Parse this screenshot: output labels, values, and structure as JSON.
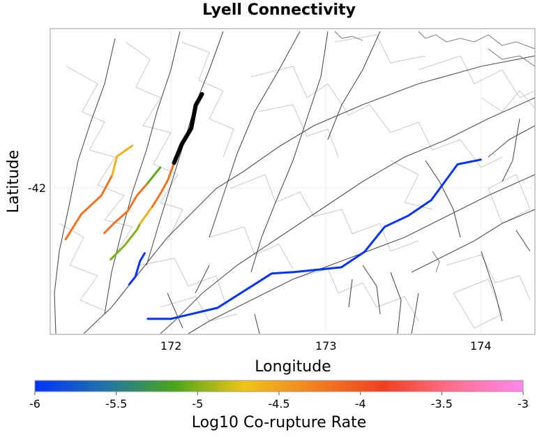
{
  "chart_data": {
    "type": "map",
    "title": "Lyell Connectivity",
    "xlabel": "Longitude",
    "ylabel": "Latitude",
    "xlim": [
      171.22,
      174.35
    ],
    "ylim": [
      -42.94,
      -40.98
    ],
    "x_ticks": [
      {
        "value": 172,
        "label": "172"
      },
      {
        "value": 173,
        "label": "173"
      },
      {
        "value": 174,
        "label": "174"
      }
    ],
    "y_ticks": [
      {
        "value": -42,
        "label": "-42"
      }
    ],
    "grid": true,
    "colorbar": {
      "label": "Log10 Co-rupture Rate",
      "min": -6,
      "max": -3,
      "ticks": [
        {
          "value": -6,
          "label": "-6"
        },
        {
          "value": -5.5,
          "label": "-5.5"
        },
        {
          "value": -5,
          "label": "-5"
        },
        {
          "value": -4.5,
          "label": "-4.5"
        },
        {
          "value": -4,
          "label": "-4"
        },
        {
          "value": -3.5,
          "label": "-3.5"
        },
        {
          "value": -3,
          "label": "-3"
        }
      ],
      "colors": [
        "#0433ff",
        "#1f73a8",
        "#4aa61a",
        "#f0c419",
        "#f08020",
        "#f04020",
        "#ff7090",
        "#ff88ee"
      ]
    },
    "source_fault": {
      "name": "Lyell",
      "color": "#000000",
      "trace": [
        [
          172.2,
          -41.4
        ],
        [
          172.16,
          -41.47
        ],
        [
          172.13,
          -41.62
        ],
        [
          172.07,
          -41.72
        ],
        [
          172.02,
          -41.84
        ]
      ]
    },
    "ruptures": [
      {
        "log10_rate": -4.2,
        "trace": [
          [
            171.32,
            -42.33
          ],
          [
            171.42,
            -42.17
          ],
          [
            171.55,
            -42.05
          ],
          [
            171.62,
            -41.92
          ]
        ]
      },
      {
        "log10_rate": -4.6,
        "trace": [
          [
            171.62,
            -41.92
          ],
          [
            171.65,
            -41.8
          ],
          [
            171.75,
            -41.73
          ]
        ]
      },
      {
        "log10_rate": -4.2,
        "trace": [
          [
            171.57,
            -42.29
          ],
          [
            171.63,
            -42.23
          ],
          [
            171.72,
            -42.15
          ],
          [
            171.78,
            -42.05
          ],
          [
            171.85,
            -41.97
          ]
        ]
      },
      {
        "log10_rate": -5.1,
        "trace": [
          [
            171.85,
            -41.97
          ],
          [
            171.93,
            -41.87
          ]
        ]
      },
      {
        "log10_rate": -5.0,
        "trace": [
          [
            171.61,
            -42.46
          ],
          [
            171.7,
            -42.37
          ],
          [
            171.78,
            -42.27
          ],
          [
            171.8,
            -42.23
          ]
        ]
      },
      {
        "log10_rate": -4.6,
        "trace": [
          [
            171.8,
            -42.23
          ],
          [
            171.88,
            -42.12
          ]
        ]
      },
      {
        "log10_rate": -4.2,
        "trace": [
          [
            171.88,
            -42.12
          ],
          [
            171.93,
            -42.04
          ],
          [
            171.98,
            -41.95
          ],
          [
            172.02,
            -41.84
          ]
        ]
      },
      {
        "log10_rate": -6.0,
        "trace": [
          [
            171.73,
            -42.62
          ],
          [
            171.77,
            -42.57
          ],
          [
            171.8,
            -42.47
          ],
          [
            171.83,
            -42.42
          ]
        ]
      },
      {
        "log10_rate": -6.0,
        "trace": [
          [
            171.85,
            -42.84
          ],
          [
            172.0,
            -42.84
          ],
          [
            172.3,
            -42.77
          ],
          [
            172.65,
            -42.55
          ],
          [
            172.8,
            -42.54
          ],
          [
            173.1,
            -42.51
          ],
          [
            173.25,
            -42.41
          ],
          [
            173.38,
            -42.25
          ],
          [
            173.53,
            -42.18
          ],
          [
            173.68,
            -42.08
          ],
          [
            173.85,
            -41.85
          ],
          [
            174.0,
            -41.82
          ]
        ]
      }
    ]
  }
}
